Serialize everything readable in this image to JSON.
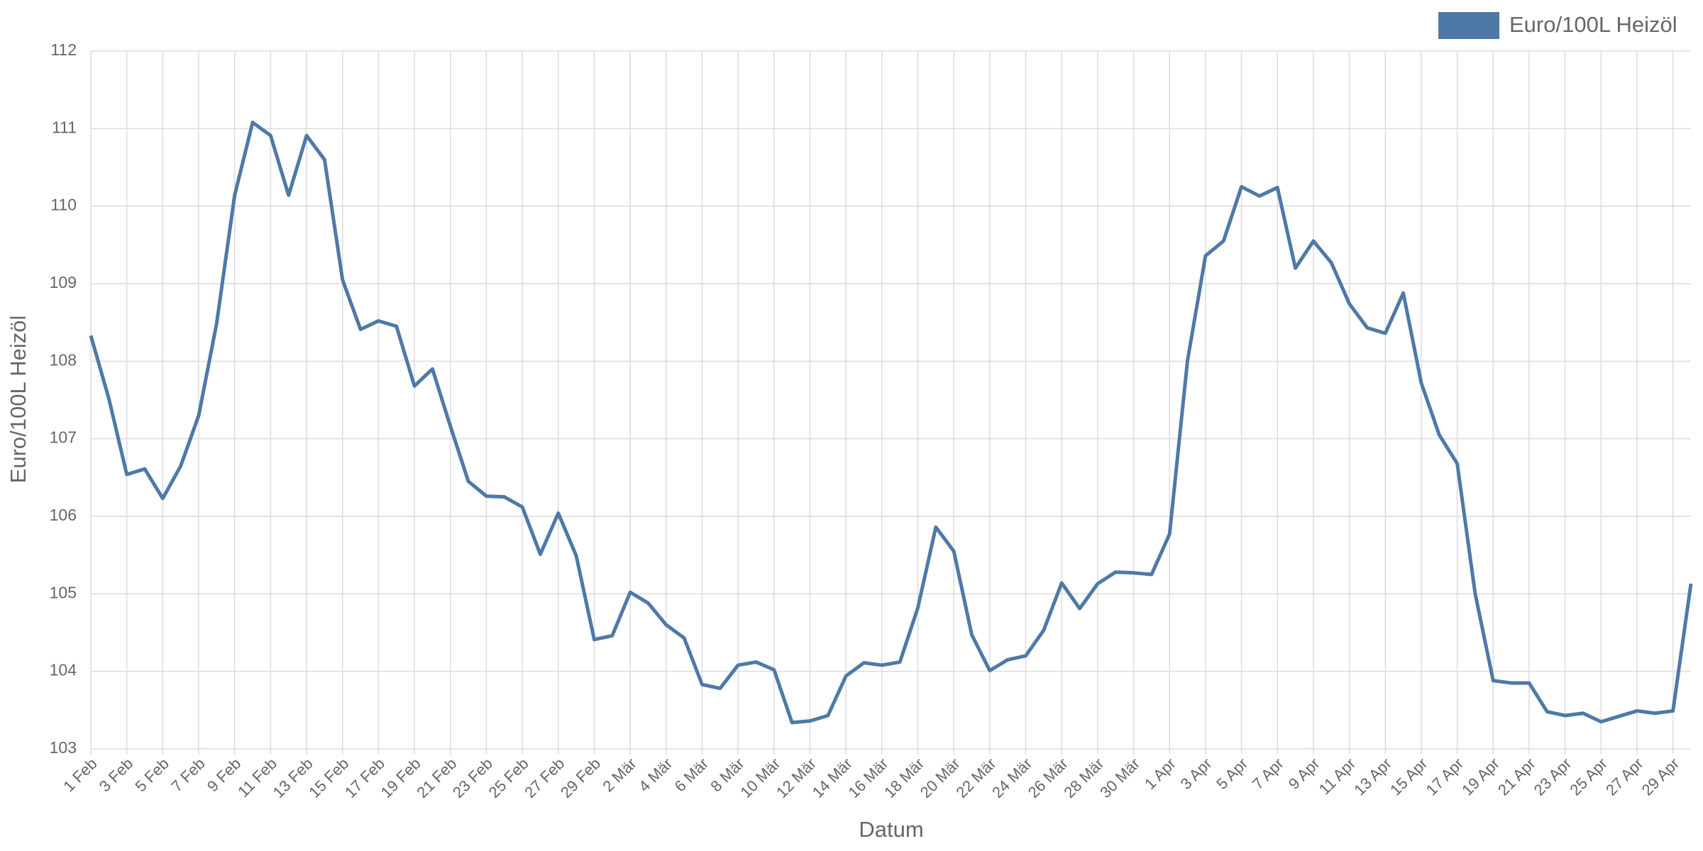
{
  "chart_data": {
    "type": "line",
    "x_label": "Datum",
    "y_label": "Euro/100L Heizöl",
    "categories": [
      "1 Feb",
      null,
      "3 Feb",
      null,
      "5 Feb",
      null,
      "7 Feb",
      null,
      "9 Feb",
      null,
      "11 Feb",
      null,
      "13 Feb",
      null,
      "15 Feb",
      null,
      "17 Feb",
      null,
      "19 Feb",
      null,
      "21 Feb",
      null,
      "23 Feb",
      null,
      "25 Feb",
      null,
      "27 Feb",
      null,
      "29 Feb",
      null,
      "2 Mär",
      null,
      "4 Mär",
      null,
      "6 Mär",
      null,
      "8 Mär",
      null,
      "10 Mär",
      null,
      "12 Mär",
      null,
      "14 Mär",
      null,
      "16 Mär",
      null,
      "18 Mär",
      null,
      "20 Mär",
      null,
      "22 Mär",
      null,
      "24 Mär",
      null,
      "26 Mär",
      null,
      "28 Mär",
      null,
      "30 Mär",
      null,
      "1 Apr",
      null,
      "3 Apr",
      null,
      "5 Apr",
      null,
      "7 Apr",
      null,
      "9 Apr",
      null,
      "11 Apr",
      null,
      "13 Apr",
      null,
      "15 Apr",
      null,
      "17 Apr",
      null,
      "19 Apr",
      null,
      "21 Apr",
      null,
      "23 Apr",
      null,
      "25 Apr",
      null,
      "27 Apr",
      null,
      "29 Apr",
      null
    ],
    "series": [
      {
        "name": "Euro/100L Heizöl",
        "color": "#4e79a7",
        "values": [
          108.33,
          107.52,
          106.54,
          106.61,
          106.23,
          106.65,
          107.3,
          108.49,
          110.14,
          111.08,
          110.91,
          110.14,
          110.91,
          110.6,
          109.05,
          108.41,
          108.52,
          108.45,
          107.68,
          107.9,
          107.16,
          106.45,
          106.26,
          106.25,
          106.12,
          105.51,
          106.04,
          105.49,
          104.41,
          104.46,
          105.02,
          104.88,
          104.6,
          104.43,
          103.83,
          103.78,
          104.08,
          104.12,
          104.02,
          103.34,
          103.36,
          103.43,
          103.94,
          104.11,
          104.08,
          104.12,
          104.82,
          105.86,
          105.55,
          104.47,
          104.01,
          104.15,
          104.2,
          104.53,
          105.14,
          104.81,
          105.13,
          105.28,
          105.27,
          105.25,
          105.77,
          108.01,
          109.36,
          109.55,
          110.25,
          110.13,
          110.24,
          109.2,
          109.55,
          109.27,
          108.74,
          108.43,
          108.36,
          108.88,
          107.72,
          107.05,
          106.68,
          105.0,
          103.88,
          103.85,
          103.85,
          103.48,
          103.43,
          103.46,
          103.35,
          103.42,
          103.49,
          103.46,
          103.49,
          105.13
        ]
      }
    ],
    "ylim": [
      103,
      112
    ],
    "yticks": [
      103,
      104,
      105,
      106,
      107,
      108,
      109,
      110,
      111,
      112
    ],
    "grid": true,
    "legend": "top-right"
  }
}
